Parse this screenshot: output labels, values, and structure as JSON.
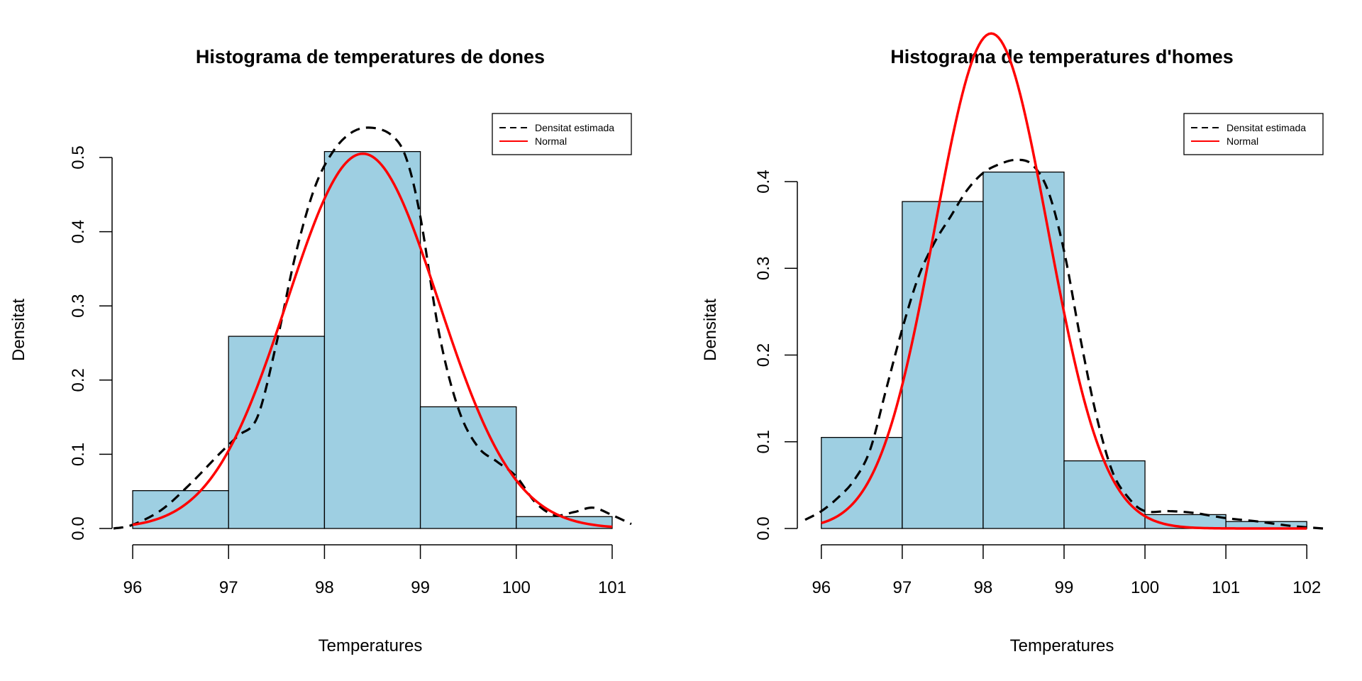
{
  "chart_data": [
    {
      "type": "bar",
      "title": "Histograma de temperatures de dones",
      "xlabel": "Temperatures",
      "ylabel": "Densitat",
      "bin_edges": [
        96,
        97,
        98,
        99,
        100,
        101
      ],
      "values": [
        0.051,
        0.259,
        0.508,
        0.164,
        0.016
      ],
      "fill": "#9ecfe2",
      "xlim": [
        95.8,
        101.2
      ],
      "ylim": [
        0,
        0.5
      ],
      "xticks": [
        "96",
        "97",
        "98",
        "99",
        "100",
        "101"
      ],
      "yticks": [
        "0.0",
        "0.1",
        "0.2",
        "0.3",
        "0.4",
        "0.5"
      ],
      "ytick_values": [
        0,
        0.1,
        0.2,
        0.3,
        0.4,
        0.5
      ],
      "legend": {
        "position": "top-right",
        "entries": [
          "Densitat estimada",
          "Normal"
        ]
      },
      "series": [
        {
          "name": "Densitat estimada",
          "style": "dashed",
          "color": "#000000",
          "x": [
            95.8,
            96.0,
            96.3,
            96.6,
            96.9,
            97.1,
            97.3,
            97.5,
            97.7,
            97.9,
            98.1,
            98.3,
            98.5,
            98.7,
            98.85,
            99.0,
            99.2,
            99.4,
            99.6,
            99.8,
            100.0,
            100.2,
            100.4,
            100.6,
            100.8,
            101.0,
            101.2
          ],
          "y": [
            0.0,
            0.005,
            0.025,
            0.06,
            0.1,
            0.125,
            0.15,
            0.25,
            0.37,
            0.46,
            0.51,
            0.535,
            0.54,
            0.53,
            0.5,
            0.42,
            0.26,
            0.16,
            0.11,
            0.09,
            0.07,
            0.035,
            0.018,
            0.022,
            0.028,
            0.018,
            0.006
          ]
        },
        {
          "name": "Normal",
          "style": "solid",
          "color": "#ff0000",
          "mean": 98.4,
          "sd": 0.7897,
          "x_range": [
            96,
            101
          ]
        }
      ]
    },
    {
      "type": "bar",
      "title": "Histograma de temperatures d'homes",
      "xlabel": "Temperatures",
      "ylabel": "Densitat",
      "bin_edges": [
        96,
        97,
        98,
        99,
        100,
        101,
        102
      ],
      "values": [
        0.105,
        0.377,
        0.411,
        0.078,
        0.016,
        0.008
      ],
      "fill": "#9ecfe2",
      "xlim": [
        95.8,
        102.2
      ],
      "ylim": [
        0,
        0.4
      ],
      "xticks": [
        "96",
        "97",
        "98",
        "99",
        "100",
        "101",
        "102"
      ],
      "yticks": [
        "0.0",
        "0.1",
        "0.2",
        "0.3",
        "0.4"
      ],
      "ytick_values": [
        0,
        0.1,
        0.2,
        0.3,
        0.4
      ],
      "legend": {
        "position": "top-right",
        "entries": [
          "Densitat estimada",
          "Normal"
        ]
      },
      "series": [
        {
          "name": "Densitat estimada",
          "style": "dashed",
          "color": "#000000",
          "x": [
            95.8,
            96.0,
            96.2,
            96.4,
            96.6,
            96.8,
            97.0,
            97.2,
            97.4,
            97.6,
            97.8,
            98.0,
            98.2,
            98.4,
            98.6,
            98.8,
            99.0,
            99.2,
            99.4,
            99.6,
            99.8,
            100.0,
            100.3,
            100.6,
            101.0,
            101.4,
            101.8,
            102.2
          ],
          "y": [
            0.01,
            0.02,
            0.035,
            0.055,
            0.09,
            0.16,
            0.23,
            0.29,
            0.33,
            0.36,
            0.39,
            0.41,
            0.42,
            0.425,
            0.42,
            0.39,
            0.32,
            0.22,
            0.13,
            0.065,
            0.035,
            0.02,
            0.02,
            0.018,
            0.012,
            0.008,
            0.003,
            0.0
          ]
        },
        {
          "name": "Normal",
          "style": "solid",
          "color": "#ff0000",
          "mean": 98.1,
          "sd": 0.6989,
          "x_range": [
            96,
            102
          ]
        }
      ]
    }
  ]
}
